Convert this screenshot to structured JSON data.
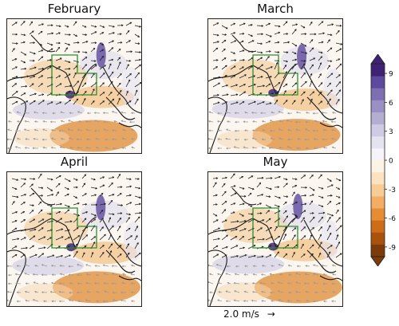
{
  "panels": [
    {
      "id": "feb",
      "title": "February"
    },
    {
      "id": "mar",
      "title": "March"
    },
    {
      "id": "apr",
      "title": "April"
    },
    {
      "id": "may",
      "title": "May"
    }
  ],
  "colorbar": {
    "ticks": [
      "9",
      "6",
      "3",
      "0",
      "-3",
      "-6",
      "-9"
    ],
    "values": [
      9,
      6,
      3,
      0,
      -3,
      -6,
      -9
    ],
    "range": [
      -10,
      10
    ],
    "colors_positive": [
      "#f7f4f9",
      "#e6e3f0",
      "#cfcbe4",
      "#b4aed3",
      "#9a90c3",
      "#7e6fb2",
      "#5e4a9c",
      "#3f2274"
    ],
    "colors_negative": [
      "#fdf3e4",
      "#fbe3c2",
      "#f8cc96",
      "#f3ae63",
      "#e58c34",
      "#cd6d18",
      "#a8520e",
      "#7c3b08"
    ],
    "extend": "both"
  },
  "quiver_key": {
    "label": "2.0 m/s",
    "arrow": "→"
  },
  "chart_data": {
    "type": "heatmap",
    "panels": [
      "February",
      "March",
      "April",
      "May"
    ],
    "colorbar_ticks": [
      9,
      6,
      3,
      0,
      -3,
      -6,
      -9
    ],
    "colorbar_range": [
      -10,
      10
    ],
    "vector_reference": "2.0 m/s"
  }
}
